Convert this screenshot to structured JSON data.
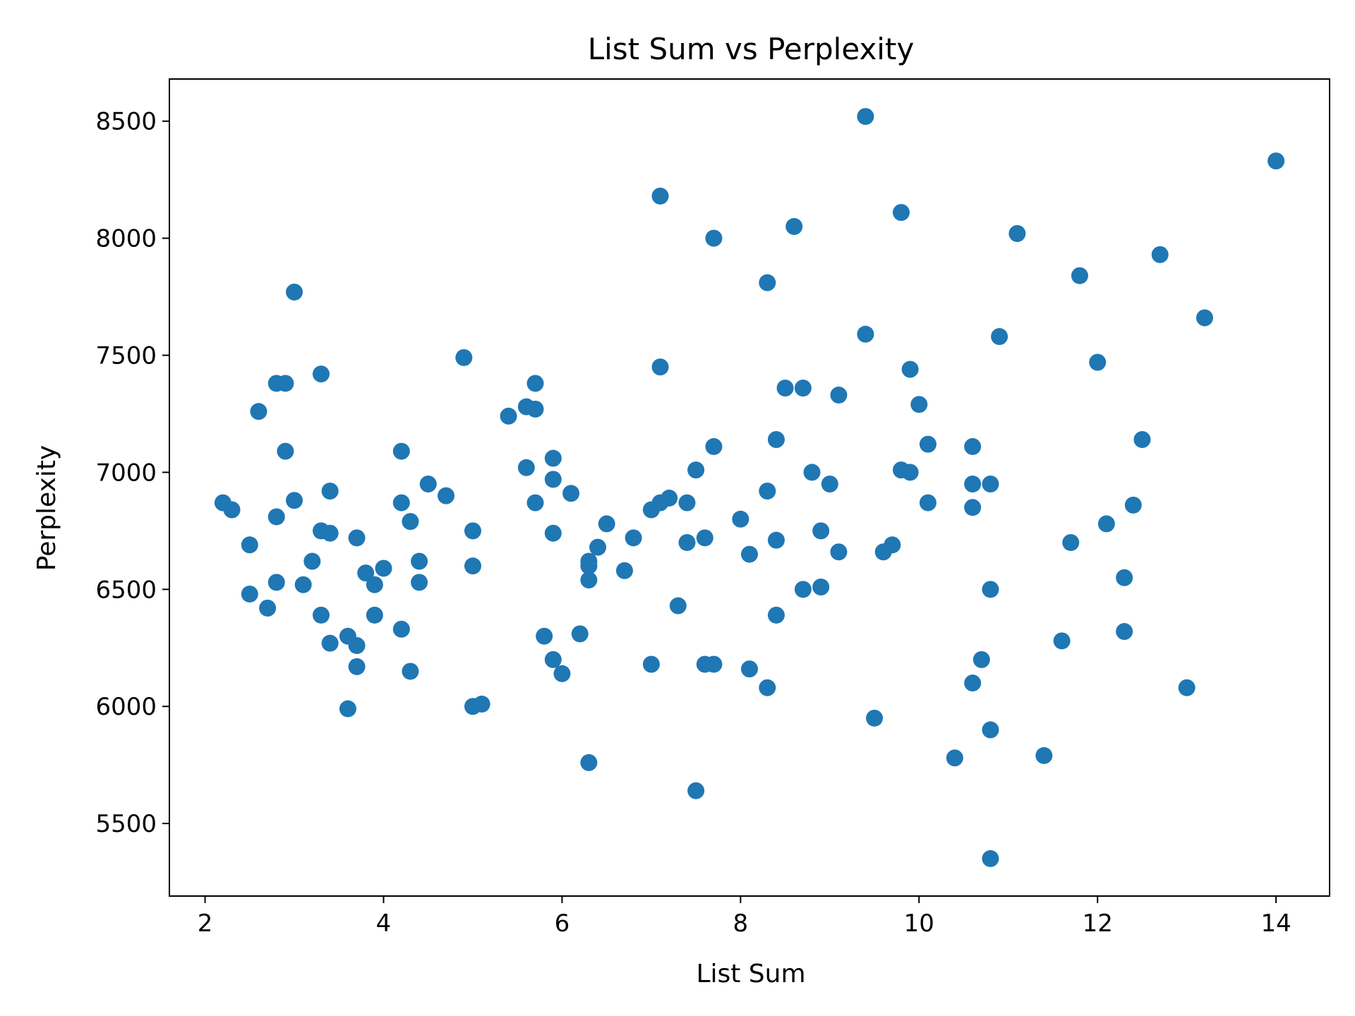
{
  "chart_data": {
    "type": "scatter",
    "title": "List Sum vs Perplexity",
    "xlabel": "List Sum",
    "ylabel": "Perplexity",
    "xlim": [
      1.6,
      14.6
    ],
    "ylim": [
      5190,
      8680
    ],
    "xticks": [
      2,
      4,
      6,
      8,
      10,
      12,
      14
    ],
    "yticks": [
      5500,
      6000,
      6500,
      7000,
      7500,
      8000,
      8500
    ],
    "grid": false,
    "legend": "none",
    "marker_color": "#1f77b4",
    "points": [
      [
        2.2,
        6870
      ],
      [
        2.3,
        6840
      ],
      [
        2.5,
        6690
      ],
      [
        2.5,
        6480
      ],
      [
        2.6,
        7260
      ],
      [
        2.7,
        6420
      ],
      [
        2.8,
        7380
      ],
      [
        2.8,
        6810
      ],
      [
        2.8,
        6530
      ],
      [
        2.9,
        7380
      ],
      [
        2.9,
        7090
      ],
      [
        3.0,
        7770
      ],
      [
        3.0,
        6880
      ],
      [
        3.1,
        6520
      ],
      [
        3.2,
        6620
      ],
      [
        3.3,
        7420
      ],
      [
        3.3,
        6750
      ],
      [
        3.3,
        6390
      ],
      [
        3.4,
        6920
      ],
      [
        3.4,
        6740
      ],
      [
        3.4,
        6270
      ],
      [
        3.6,
        6300
      ],
      [
        3.6,
        5990
      ],
      [
        3.7,
        6720
      ],
      [
        3.7,
        6260
      ],
      [
        3.7,
        6170
      ],
      [
        3.8,
        6570
      ],
      [
        3.9,
        6520
      ],
      [
        3.9,
        6390
      ],
      [
        4.0,
        6590
      ],
      [
        4.2,
        7090
      ],
      [
        4.2,
        6870
      ],
      [
        4.2,
        6330
      ],
      [
        4.3,
        6790
      ],
      [
        4.3,
        6150
      ],
      [
        4.4,
        6620
      ],
      [
        4.4,
        6530
      ],
      [
        4.5,
        6950
      ],
      [
        4.7,
        6900
      ],
      [
        4.9,
        7490
      ],
      [
        5.0,
        6750
      ],
      [
        5.0,
        6600
      ],
      [
        5.0,
        6000
      ],
      [
        5.1,
        6010
      ],
      [
        5.4,
        7240
      ],
      [
        5.6,
        7280
      ],
      [
        5.6,
        7020
      ],
      [
        5.7,
        7380
      ],
      [
        5.7,
        7270
      ],
      [
        5.7,
        6870
      ],
      [
        5.8,
        6300
      ],
      [
        5.9,
        7060
      ],
      [
        5.9,
        6970
      ],
      [
        5.9,
        6740
      ],
      [
        5.9,
        6200
      ],
      [
        6.0,
        6140
      ],
      [
        6.1,
        6910
      ],
      [
        6.2,
        6310
      ],
      [
        6.3,
        6620
      ],
      [
        6.3,
        6600
      ],
      [
        6.3,
        6540
      ],
      [
        6.3,
        5760
      ],
      [
        6.4,
        6680
      ],
      [
        6.5,
        6780
      ],
      [
        6.7,
        6580
      ],
      [
        6.8,
        6720
      ],
      [
        7.0,
        6840
      ],
      [
        7.0,
        6180
      ],
      [
        7.1,
        8180
      ],
      [
        7.1,
        7450
      ],
      [
        7.1,
        6870
      ],
      [
        7.2,
        6890
      ],
      [
        7.3,
        6430
      ],
      [
        7.4,
        6870
      ],
      [
        7.4,
        6700
      ],
      [
        7.5,
        7010
      ],
      [
        7.5,
        5640
      ],
      [
        7.6,
        6720
      ],
      [
        7.6,
        6180
      ],
      [
        7.7,
        8000
      ],
      [
        7.7,
        7110
      ],
      [
        7.7,
        6180
      ],
      [
        8.0,
        6800
      ],
      [
        8.1,
        6650
      ],
      [
        8.1,
        6160
      ],
      [
        8.3,
        7810
      ],
      [
        8.3,
        6920
      ],
      [
        8.3,
        6080
      ],
      [
        8.4,
        7140
      ],
      [
        8.4,
        6710
      ],
      [
        8.4,
        6390
      ],
      [
        8.5,
        7360
      ],
      [
        8.6,
        8050
      ],
      [
        8.7,
        7360
      ],
      [
        8.7,
        6500
      ],
      [
        8.8,
        7000
      ],
      [
        8.9,
        6750
      ],
      [
        8.9,
        6510
      ],
      [
        9.0,
        6950
      ],
      [
        9.1,
        7330
      ],
      [
        9.1,
        6660
      ],
      [
        9.4,
        8520
      ],
      [
        9.4,
        7590
      ],
      [
        9.5,
        5950
      ],
      [
        9.6,
        6660
      ],
      [
        9.7,
        6690
      ],
      [
        9.8,
        8110
      ],
      [
        9.8,
        7010
      ],
      [
        9.9,
        7440
      ],
      [
        9.9,
        7000
      ],
      [
        10.0,
        7290
      ],
      [
        10.1,
        7120
      ],
      [
        10.1,
        6870
      ],
      [
        10.4,
        5780
      ],
      [
        10.6,
        7110
      ],
      [
        10.6,
        6950
      ],
      [
        10.6,
        6850
      ],
      [
        10.6,
        6100
      ],
      [
        10.7,
        6200
      ],
      [
        10.8,
        6950
      ],
      [
        10.8,
        6500
      ],
      [
        10.8,
        5900
      ],
      [
        10.8,
        5350
      ],
      [
        10.9,
        7580
      ],
      [
        11.1,
        8020
      ],
      [
        11.4,
        5790
      ],
      [
        11.6,
        6280
      ],
      [
        11.7,
        6700
      ],
      [
        11.8,
        7840
      ],
      [
        12.0,
        7470
      ],
      [
        12.1,
        6780
      ],
      [
        12.3,
        6550
      ],
      [
        12.3,
        6320
      ],
      [
        12.4,
        6860
      ],
      [
        12.5,
        7140
      ],
      [
        12.7,
        7930
      ],
      [
        13.0,
        6080
      ],
      [
        13.2,
        7660
      ],
      [
        14.0,
        8330
      ]
    ]
  }
}
